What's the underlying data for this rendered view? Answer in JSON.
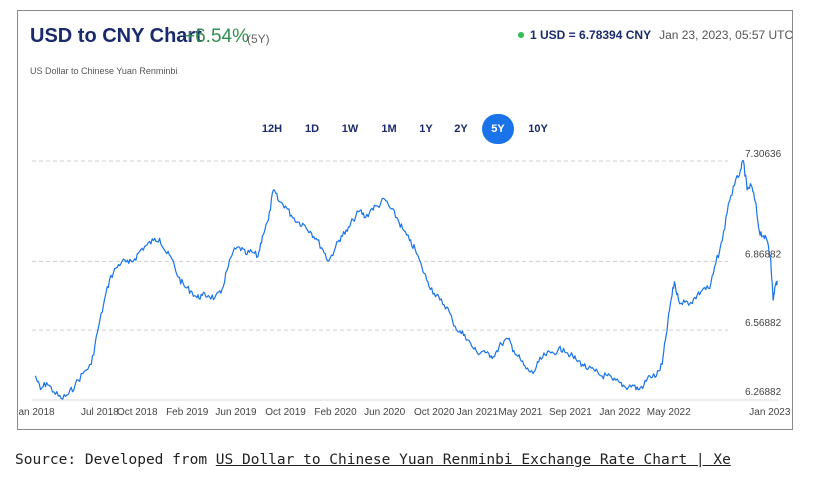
{
  "header": {
    "title": "USD to CNY Chart",
    "change": "+6.54%",
    "period": "(5Y)",
    "subtitle": "US Dollar to Chinese Yuan Renminbi",
    "rate": "1 USD = 6.78394 CNY",
    "timestamp": "Jan 23, 2023, 05:57 UTC"
  },
  "colors": {
    "line": "#1a73e8",
    "title": "#1a2b6d",
    "change": "#2f8f4e",
    "live_dot": "#2fbf52",
    "active_tab": "#1a73e8"
  },
  "tabs": {
    "items": [
      "12H",
      "1D",
      "1W",
      "1M",
      "1Y",
      "2Y",
      "5Y",
      "10Y"
    ],
    "active": "5Y"
  },
  "source": {
    "prefix": "Source: Developed from ",
    "link_text": "US Dollar to Chinese Yuan Renminbi Exchange Rate Chart | Xe"
  },
  "chart_data": {
    "type": "line",
    "title": "USD to CNY Chart",
    "xlabel": "",
    "ylabel": "",
    "x_ticks": [
      "Jan 2018",
      "Jul 2018",
      "Oct 2018",
      "Feb 2019",
      "Jun 2019",
      "Oct 2019",
      "Feb 2020",
      "Jun 2020",
      "Oct 2020",
      "Jan 2021",
      "May 2021",
      "Sep 2021",
      "Jan 2022",
      "May 2022",
      "Jan 2023"
    ],
    "y_ticks": [
      "6.26882",
      "6.56882",
      "6.86882",
      "7.30636"
    ],
    "y_tick_values": [
      6.26882,
      6.56882,
      6.86882,
      7.30636
    ],
    "ylim": [
      6.26882,
      7.30636
    ],
    "grid": "horizontal dashed",
    "series": [
      {
        "values": [
          [
            "2018-01-23",
            6.37
          ],
          [
            "2018-02-05",
            6.31
          ],
          [
            "2018-02-20",
            6.34
          ],
          [
            "2018-03-10",
            6.3
          ],
          [
            "2018-03-28",
            6.27
          ],
          [
            "2018-04-15",
            6.29
          ],
          [
            "2018-05-01",
            6.33
          ],
          [
            "2018-05-20",
            6.38
          ],
          [
            "2018-06-10",
            6.42
          ],
          [
            "2018-06-25",
            6.56
          ],
          [
            "2018-07-10",
            6.68
          ],
          [
            "2018-07-25",
            6.79
          ],
          [
            "2018-08-10",
            6.84
          ],
          [
            "2018-08-25",
            6.87
          ],
          [
            "2018-09-10",
            6.86
          ],
          [
            "2018-09-25",
            6.88
          ],
          [
            "2018-10-10",
            6.92
          ],
          [
            "2018-10-25",
            6.94
          ],
          [
            "2018-11-10",
            6.96
          ],
          [
            "2018-11-25",
            6.97
          ],
          [
            "2018-12-10",
            6.91
          ],
          [
            "2018-12-25",
            6.88
          ],
          [
            "2019-01-10",
            6.8
          ],
          [
            "2019-01-25",
            6.76
          ],
          [
            "2019-02-10",
            6.74
          ],
          [
            "2019-02-25",
            6.71
          ],
          [
            "2019-03-10",
            6.72
          ],
          [
            "2019-03-25",
            6.72
          ],
          [
            "2019-04-10",
            6.71
          ],
          [
            "2019-04-25",
            6.73
          ],
          [
            "2019-05-10",
            6.83
          ],
          [
            "2019-05-25",
            6.91
          ],
          [
            "2019-06-10",
            6.93
          ],
          [
            "2019-06-25",
            6.9
          ],
          [
            "2019-07-10",
            6.91
          ],
          [
            "2019-07-25",
            6.89
          ],
          [
            "2019-08-05",
            6.98
          ],
          [
            "2019-08-20",
            7.05
          ],
          [
            "2019-09-01",
            7.18
          ],
          [
            "2019-09-15",
            7.13
          ],
          [
            "2019-10-01",
            7.11
          ],
          [
            "2019-10-15",
            7.07
          ],
          [
            "2019-11-01",
            7.04
          ],
          [
            "2019-11-15",
            7.03
          ],
          [
            "2019-12-01",
            7.0
          ],
          [
            "2019-12-15",
            6.97
          ],
          [
            "2020-01-01",
            6.92
          ],
          [
            "2020-01-15",
            6.87
          ],
          [
            "2020-02-01",
            6.93
          ],
          [
            "2020-02-15",
            6.98
          ],
          [
            "2020-03-01",
            7.0
          ],
          [
            "2020-03-15",
            7.05
          ],
          [
            "2020-04-01",
            7.09
          ],
          [
            "2020-04-15",
            7.06
          ],
          [
            "2020-05-01",
            7.1
          ],
          [
            "2020-05-15",
            7.11
          ],
          [
            "2020-06-01",
            7.14
          ],
          [
            "2020-06-15",
            7.1
          ],
          [
            "2020-07-01",
            7.06
          ],
          [
            "2020-07-15",
            7.01
          ],
          [
            "2020-08-01",
            6.96
          ],
          [
            "2020-08-15",
            6.92
          ],
          [
            "2020-09-01",
            6.84
          ],
          [
            "2020-09-15",
            6.78
          ],
          [
            "2020-10-01",
            6.73
          ],
          [
            "2020-10-15",
            6.7
          ],
          [
            "2020-11-01",
            6.67
          ],
          [
            "2020-11-15",
            6.61
          ],
          [
            "2020-12-01",
            6.56
          ],
          [
            "2020-12-15",
            6.55
          ],
          [
            "2021-01-01",
            6.5
          ],
          [
            "2021-01-15",
            6.47
          ],
          [
            "2021-02-01",
            6.48
          ],
          [
            "2021-02-15",
            6.45
          ],
          [
            "2021-03-01",
            6.47
          ],
          [
            "2021-03-15",
            6.51
          ],
          [
            "2021-04-01",
            6.53
          ],
          [
            "2021-04-15",
            6.48
          ],
          [
            "2021-05-01",
            6.44
          ],
          [
            "2021-05-15",
            6.4
          ],
          [
            "2021-06-01",
            6.38
          ],
          [
            "2021-06-15",
            6.43
          ],
          [
            "2021-07-01",
            6.46
          ],
          [
            "2021-07-15",
            6.47
          ],
          [
            "2021-08-01",
            6.48
          ],
          [
            "2021-08-15",
            6.49
          ],
          [
            "2021-09-01",
            6.46
          ],
          [
            "2021-09-15",
            6.44
          ],
          [
            "2021-10-01",
            6.42
          ],
          [
            "2021-10-15",
            6.4
          ],
          [
            "2021-11-01",
            6.39
          ],
          [
            "2021-11-15",
            6.37
          ],
          [
            "2021-12-01",
            6.37
          ],
          [
            "2021-12-15",
            6.35
          ],
          [
            "2022-01-01",
            6.34
          ],
          [
            "2022-01-15",
            6.32
          ],
          [
            "2022-02-01",
            6.33
          ],
          [
            "2022-02-15",
            6.31
          ],
          [
            "2022-03-01",
            6.33
          ],
          [
            "2022-03-15",
            6.37
          ],
          [
            "2022-04-01",
            6.37
          ],
          [
            "2022-04-15",
            6.42
          ],
          [
            "2022-04-25",
            6.55
          ],
          [
            "2022-05-05",
            6.68
          ],
          [
            "2022-05-15",
            6.78
          ],
          [
            "2022-05-25",
            6.7
          ],
          [
            "2022-06-10",
            6.69
          ],
          [
            "2022-06-25",
            6.69
          ],
          [
            "2022-07-10",
            6.72
          ],
          [
            "2022-07-25",
            6.75
          ],
          [
            "2022-08-10",
            6.75
          ],
          [
            "2022-08-25",
            6.86
          ],
          [
            "2022-09-10",
            6.96
          ],
          [
            "2022-09-25",
            7.12
          ],
          [
            "2022-10-10",
            7.2
          ],
          [
            "2022-10-25",
            7.27
          ],
          [
            "2022-11-01",
            7.30636
          ],
          [
            "2022-11-10",
            7.18
          ],
          [
            "2022-11-20",
            7.2
          ],
          [
            "2022-11-30",
            7.13
          ],
          [
            "2022-12-10",
            7.0
          ],
          [
            "2022-12-20",
            6.98
          ],
          [
            "2022-12-31",
            6.95
          ],
          [
            "2023-01-07",
            6.88
          ],
          [
            "2023-01-13",
            6.7
          ],
          [
            "2023-01-18",
            6.76
          ],
          [
            "2023-01-23",
            6.78394
          ]
        ]
      }
    ]
  }
}
